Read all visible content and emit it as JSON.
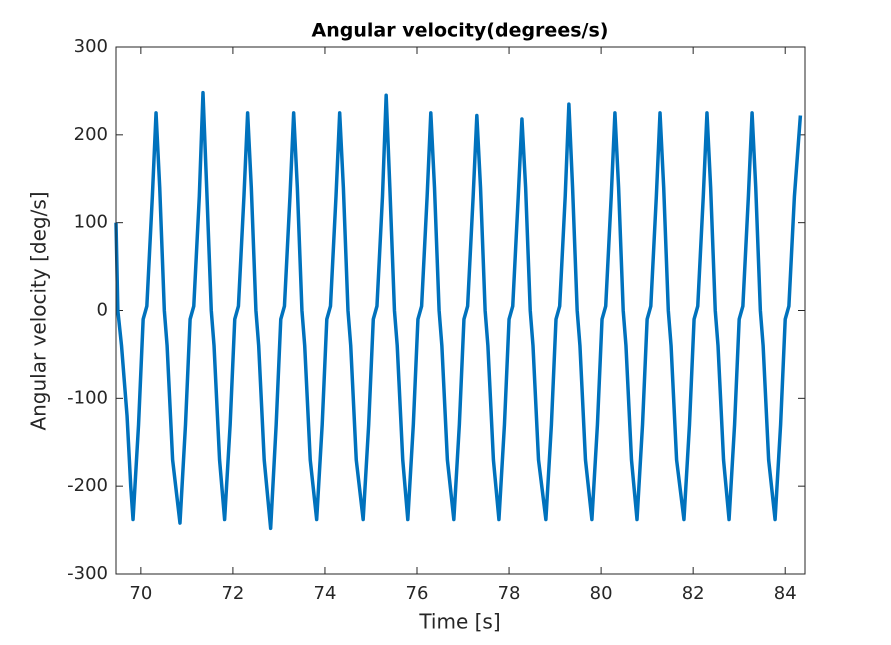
{
  "chart_data": {
    "type": "line",
    "title": "Angular velocity(degrees/s)",
    "x_label": "Time [s]",
    "y_label": "Angular velocity [deg/s]",
    "xlim": [
      69.46,
      84.43
    ],
    "xticks": [
      70,
      72,
      74,
      76,
      78,
      80,
      82,
      84
    ],
    "ylim": [
      -300,
      300
    ],
    "yticks": [
      -300,
      -200,
      -100,
      0,
      100,
      200,
      300
    ],
    "grid": false,
    "x": [
      69.46,
      69.5,
      69.58,
      69.7,
      69.78,
      69.83,
      69.95,
      70.05,
      70.13,
      70.25,
      70.33,
      70.41,
      70.51,
      70.57,
      70.69,
      70.85,
      70.97,
      71.07,
      71.15,
      71.27,
      71.35,
      71.43,
      71.53,
      71.59,
      71.71,
      71.82,
      71.94,
      72.04,
      72.12,
      72.24,
      72.32,
      72.4,
      72.5,
      72.56,
      72.68,
      72.82,
      72.94,
      73.04,
      73.12,
      73.24,
      73.32,
      73.4,
      73.5,
      73.56,
      73.68,
      73.82,
      73.94,
      74.04,
      74.12,
      74.24,
      74.32,
      74.4,
      74.5,
      74.56,
      74.68,
      74.83,
      74.95,
      75.05,
      75.13,
      75.25,
      75.33,
      75.41,
      75.51,
      75.57,
      75.69,
      75.8,
      75.92,
      76.02,
      76.1,
      76.22,
      76.3,
      76.38,
      76.48,
      76.54,
      76.66,
      76.8,
      76.92,
      77.02,
      77.1,
      77.22,
      77.3,
      77.38,
      77.48,
      77.54,
      77.66,
      77.78,
      77.9,
      78,
      78.08,
      78.2,
      78.28,
      78.36,
      78.46,
      78.52,
      78.64,
      78.8,
      78.92,
      79.02,
      79.1,
      79.22,
      79.3,
      79.38,
      79.48,
      79.54,
      79.66,
      79.8,
      79.92,
      80.02,
      80.1,
      80.22,
      80.3,
      80.38,
      80.48,
      80.54,
      80.66,
      80.78,
      80.9,
      81,
      81.08,
      81.2,
      81.28,
      81.36,
      81.46,
      81.52,
      81.64,
      81.8,
      81.92,
      82.02,
      82.1,
      82.22,
      82.3,
      82.38,
      82.48,
      82.54,
      82.66,
      82.78,
      82.9,
      83,
      83.08,
      83.2,
      83.28,
      83.36,
      83.46,
      83.52,
      83.64,
      83.78,
      83.9,
      84,
      84.08,
      84.2,
      84.33
    ],
    "series": [
      {
        "color": "#0072bd",
        "values": [
          100,
          0,
          -40,
          -120,
          -200,
          -238,
          -130,
          -10,
          5,
          130,
          225,
          140,
          0,
          -40,
          -170,
          -242,
          -130,
          -10,
          5,
          130,
          248,
          140,
          0,
          -40,
          -170,
          -238,
          -130,
          -10,
          5,
          130,
          225,
          140,
          0,
          -40,
          -170,
          -248,
          -130,
          -10,
          5,
          130,
          225,
          140,
          0,
          -40,
          -170,
          -238,
          -130,
          -10,
          5,
          130,
          225,
          140,
          0,
          -40,
          -170,
          -238,
          -130,
          -10,
          5,
          130,
          245,
          140,
          0,
          -40,
          -170,
          -238,
          -130,
          -10,
          5,
          130,
          225,
          140,
          0,
          -40,
          -170,
          -238,
          -130,
          -10,
          5,
          130,
          222,
          140,
          0,
          -40,
          -170,
          -238,
          -130,
          -10,
          5,
          130,
          218,
          140,
          0,
          -40,
          -170,
          -238,
          -130,
          -10,
          5,
          130,
          235,
          140,
          0,
          -40,
          -170,
          -238,
          -130,
          -10,
          5,
          130,
          225,
          140,
          0,
          -40,
          -170,
          -238,
          -130,
          -10,
          5,
          130,
          225,
          140,
          0,
          -40,
          -170,
          -238,
          -130,
          -10,
          5,
          130,
          225,
          140,
          0,
          -40,
          -170,
          -238,
          -130,
          -10,
          5,
          130,
          225,
          140,
          0,
          -40,
          -170,
          -238,
          -130,
          -10,
          5,
          130,
          222
        ]
      }
    ]
  }
}
